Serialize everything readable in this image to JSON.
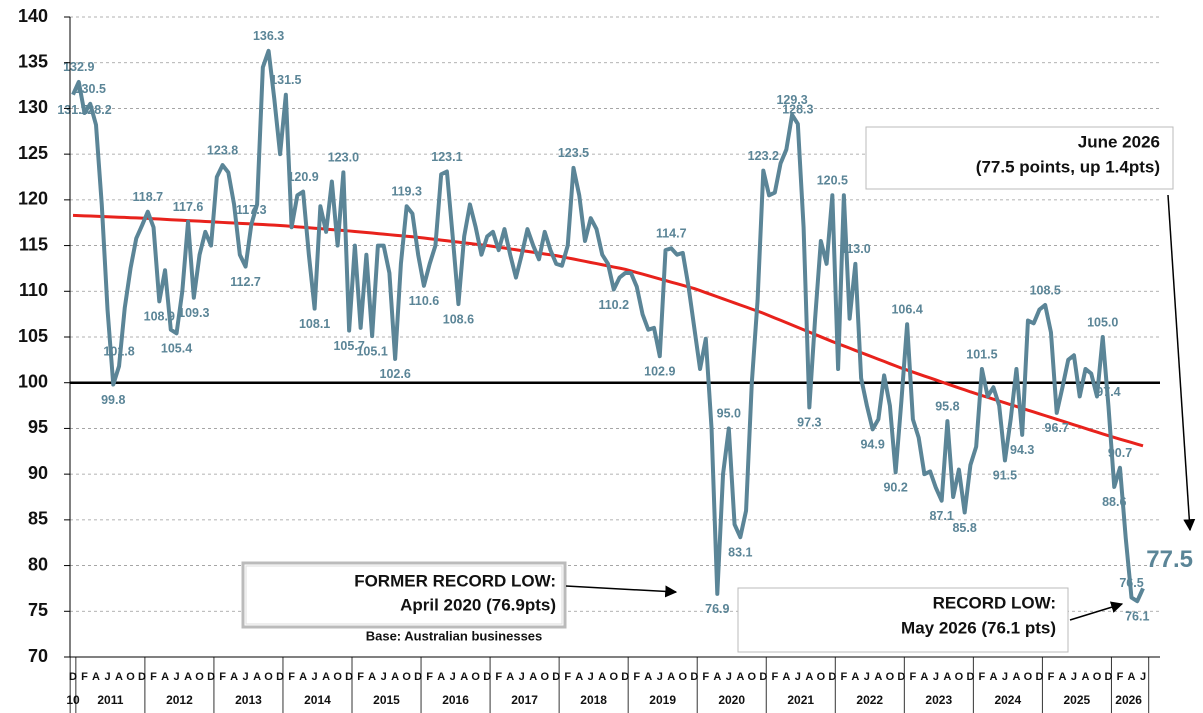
{
  "chart_data": {
    "type": "line",
    "categories": [
      "D",
      null,
      "F",
      null,
      "A",
      null,
      "J",
      null,
      "A",
      null,
      "O",
      null,
      "D",
      null,
      "F",
      null,
      "A",
      null,
      "J",
      null,
      "A",
      null,
      "O",
      null,
      "D",
      null,
      "F",
      null,
      "A",
      null,
      "J",
      null,
      "A",
      null,
      "O",
      null,
      "D",
      null,
      "F",
      null,
      "A",
      null,
      "J",
      null,
      "A",
      null,
      "O",
      null,
      "D",
      null,
      "F",
      null,
      "A",
      null,
      "J",
      null,
      "A",
      null,
      "O",
      null,
      "D",
      null,
      "F",
      null,
      "A",
      null,
      "J",
      null,
      "A",
      null,
      "O",
      null,
      "D",
      null,
      "F",
      null,
      "A",
      null,
      "J",
      null,
      "A",
      null,
      "O",
      null,
      "D",
      null,
      "F",
      null,
      "A",
      null,
      "J",
      null,
      "A",
      null,
      "O",
      null,
      "D",
      null,
      "F",
      null,
      "A",
      null,
      "J",
      null,
      "A",
      null,
      "O",
      null,
      "D",
      null,
      "F",
      null,
      "A",
      null,
      "J",
      null,
      "A",
      null,
      "O",
      null,
      "D",
      null,
      "F",
      null,
      "A",
      null,
      "J",
      null,
      "A",
      null,
      "O",
      null,
      "D",
      null,
      "F",
      null,
      "A",
      null,
      "J",
      null,
      "A",
      null,
      "O",
      null,
      "D",
      null,
      "F",
      null,
      "A",
      null,
      "J",
      null,
      "A",
      null,
      "O",
      null,
      "D",
      null,
      "F",
      null,
      "A",
      null,
      "J",
      null,
      "A",
      null,
      "O",
      null,
      "D",
      null,
      "F",
      null,
      "A",
      null,
      "J",
      null,
      "A",
      null,
      "O",
      null,
      "D",
      null,
      "F",
      null,
      "A",
      null,
      "J"
    ],
    "x_groups": [
      "10",
      "2011",
      "2012",
      "2013",
      "2014",
      "2015",
      "2016",
      "2017",
      "2018",
      "2019",
      "2020",
      "2021",
      "2022",
      "2023",
      "2024",
      "2025",
      "2026"
    ],
    "series": [
      {
        "color": "#5b8597",
        "values": [
          131.5,
          132.9,
          129.5,
          130.5,
          128.2,
          119.5,
          108.0,
          99.8,
          101.8,
          108.2,
          112.5,
          115.8,
          117.2,
          118.7,
          117.0,
          108.9,
          112.3,
          105.8,
          105.4,
          110.0,
          117.6,
          109.3,
          114.0,
          116.5,
          115.0,
          122.5,
          123.8,
          123.0,
          119.5,
          114.0,
          112.7,
          117.3,
          119.5,
          134.5,
          136.3,
          131.0,
          125.0,
          131.5,
          117.0,
          120.5,
          120.9,
          114.0,
          108.1,
          119.3,
          116.5,
          122.0,
          115.0,
          123.0,
          105.7,
          115.0,
          106.0,
          114.0,
          105.1,
          115.0,
          115.0,
          112.0,
          102.6,
          113.0,
          119.3,
          118.5,
          114.0,
          110.6,
          113.0,
          115.0,
          122.8,
          123.1,
          116.0,
          108.6,
          116.0,
          119.5,
          117.0,
          114.0,
          116.0,
          116.5,
          114.5,
          116.8,
          114.0,
          111.5,
          114.0,
          116.8,
          115.0,
          113.5,
          116.5,
          114.5,
          113.0,
          112.8,
          115.0,
          123.5,
          120.5,
          115.5,
          118.0,
          116.8,
          114.0,
          113.0,
          110.2,
          111.5,
          112.0,
          112.0,
          110.5,
          107.5,
          105.8,
          106.0,
          102.9,
          114.5,
          114.7,
          114.0,
          114.2,
          110.5,
          106.0,
          101.5,
          104.8,
          95.0,
          76.9,
          90.0,
          95.0,
          84.5,
          83.1,
          86.0,
          100.0,
          109.0,
          123.2,
          120.5,
          120.8,
          124.0,
          125.5,
          129.3,
          128.3,
          117.0,
          97.3,
          107.0,
          115.5,
          113.0,
          120.5,
          101.5,
          120.5,
          107.0,
          113.0,
          100.5,
          97.5,
          94.9,
          96.0,
          100.8,
          97.5,
          90.2,
          98.0,
          106.4,
          96.0,
          94.0,
          90.0,
          90.3,
          88.5,
          87.1,
          95.8,
          87.5,
          90.5,
          85.8,
          91.0,
          93.0,
          101.5,
          98.5,
          99.5,
          97.5,
          91.5,
          96.0,
          101.5,
          94.3,
          106.8,
          106.5,
          108.0,
          108.5,
          105.5,
          96.7,
          99.5,
          102.5,
          103.0,
          98.5,
          101.5,
          101.0,
          98.5,
          105.0,
          97.4,
          88.6,
          90.7,
          83.0,
          76.5,
          76.1,
          77.5
        ],
        "value_labels": [
          "131.5",
          "132.9",
          null,
          "130.5",
          "128.2",
          null,
          null,
          "99.8",
          "101.8",
          null,
          null,
          null,
          null,
          "118.7",
          null,
          "108.9",
          null,
          null,
          "105.4",
          null,
          "117.6",
          "109.3",
          null,
          null,
          null,
          null,
          "123.8",
          null,
          null,
          null,
          "112.7",
          "117.3",
          null,
          null,
          "136.3",
          null,
          null,
          "131.5",
          null,
          null,
          "120.9",
          null,
          "108.1",
          null,
          null,
          null,
          null,
          "123.0",
          "105.7",
          null,
          null,
          null,
          "105.1",
          null,
          null,
          null,
          "102.6",
          null,
          "119.3",
          null,
          null,
          "110.6",
          null,
          null,
          null,
          "123.1",
          null,
          "108.6",
          null,
          null,
          null,
          null,
          null,
          null,
          null,
          null,
          null,
          null,
          null,
          null,
          null,
          null,
          null,
          null,
          null,
          null,
          null,
          "123.5",
          null,
          null,
          null,
          null,
          null,
          null,
          "110.2",
          null,
          null,
          null,
          null,
          null,
          null,
          null,
          "102.9",
          null,
          "114.7",
          null,
          null,
          null,
          null,
          null,
          null,
          null,
          "76.9",
          null,
          "95.0",
          null,
          "83.1",
          null,
          null,
          null,
          "123.2",
          null,
          null,
          null,
          null,
          "129.3",
          "128.3",
          null,
          "97.3",
          null,
          null,
          null,
          "120.5",
          null,
          null,
          null,
          "113.0",
          null,
          null,
          "94.9",
          null,
          null,
          null,
          "90.2",
          null,
          "106.4",
          null,
          null,
          null,
          null,
          null,
          "87.1",
          "95.8",
          null,
          null,
          "85.8",
          null,
          null,
          "101.5",
          null,
          null,
          null,
          "91.5",
          null,
          null,
          "94.3",
          null,
          null,
          null,
          "108.5",
          null,
          "96.7",
          null,
          null,
          null,
          null,
          null,
          null,
          null,
          "105.0",
          "97.4",
          "88.6",
          "90.7",
          null,
          "76.5",
          "76.1",
          "77.5"
        ]
      },
      {
        "color": "#e8221c",
        "values": [
          118.3,
          118.28,
          118.25,
          118.23,
          118.2,
          118.18,
          118.15,
          118.13,
          118.1,
          118.08,
          118.05,
          118.03,
          118.0,
          117.97,
          117.93,
          117.9,
          117.87,
          117.83,
          117.8,
          117.77,
          117.73,
          117.7,
          117.67,
          117.63,
          117.6,
          117.57,
          117.53,
          117.5,
          117.47,
          117.43,
          117.4,
          117.37,
          117.33,
          117.3,
          117.27,
          117.23,
          117.2,
          117.15,
          117.1,
          117.05,
          117.0,
          116.95,
          116.9,
          116.85,
          116.8,
          116.75,
          116.7,
          116.65,
          116.6,
          116.54,
          116.48,
          116.43,
          116.37,
          116.31,
          116.25,
          116.19,
          116.13,
          116.08,
          116.02,
          115.96,
          115.9,
          115.83,
          115.75,
          115.68,
          115.6,
          115.53,
          115.45,
          115.38,
          115.3,
          115.23,
          115.15,
          115.08,
          115.0,
          114.91,
          114.82,
          114.73,
          114.63,
          114.54,
          114.45,
          114.36,
          114.27,
          114.18,
          114.08,
          113.99,
          113.9,
          113.78,
          113.65,
          113.53,
          113.4,
          113.28,
          113.15,
          113.03,
          112.9,
          112.78,
          112.65,
          112.53,
          112.4,
          112.23,
          112.05,
          111.88,
          111.7,
          111.53,
          111.35,
          111.18,
          111.0,
          110.83,
          110.65,
          110.48,
          110.3,
          110.08,
          109.85,
          109.63,
          109.4,
          109.18,
          108.95,
          108.73,
          108.5,
          108.28,
          108.05,
          107.83,
          107.6,
          107.34,
          107.08,
          106.83,
          106.57,
          106.31,
          106.05,
          105.79,
          105.53,
          105.28,
          105.02,
          104.76,
          104.5,
          104.26,
          104.02,
          103.78,
          103.53,
          103.29,
          103.05,
          102.81,
          102.57,
          102.33,
          102.08,
          101.84,
          101.6,
          101.38,
          101.17,
          100.95,
          100.73,
          100.52,
          100.3,
          100.08,
          99.87,
          99.65,
          99.43,
          99.22,
          99.0,
          98.8,
          98.6,
          98.4,
          98.2,
          98.0,
          97.8,
          97.6,
          97.4,
          97.2,
          97.0,
          96.8,
          96.6,
          96.4,
          96.2,
          96.0,
          95.8,
          95.6,
          95.4,
          95.2,
          95.0,
          94.8,
          94.6,
          94.4,
          94.2,
          94.02,
          93.83,
          93.65,
          93.47,
          93.28,
          93.1
        ]
      }
    ],
    "reference_line": 100,
    "reference_color": "#000000",
    "ylim": [
      70,
      140
    ],
    "yticks": [
      70,
      75,
      80,
      85,
      90,
      95,
      100,
      105,
      110,
      115,
      120,
      125,
      130,
      135,
      140
    ],
    "grid": true,
    "annotations": {
      "latest": [
        "June 2026",
        "(77.5 points, up 1.4pts)"
      ],
      "former_low": [
        "FORMER RECORD LOW:",
        "April 2020 (76.9pts)"
      ],
      "base": "Base: Australian businesses",
      "record_low": [
        "RECORD LOW:",
        "May 2026 (76.1 pts)"
      ]
    }
  }
}
